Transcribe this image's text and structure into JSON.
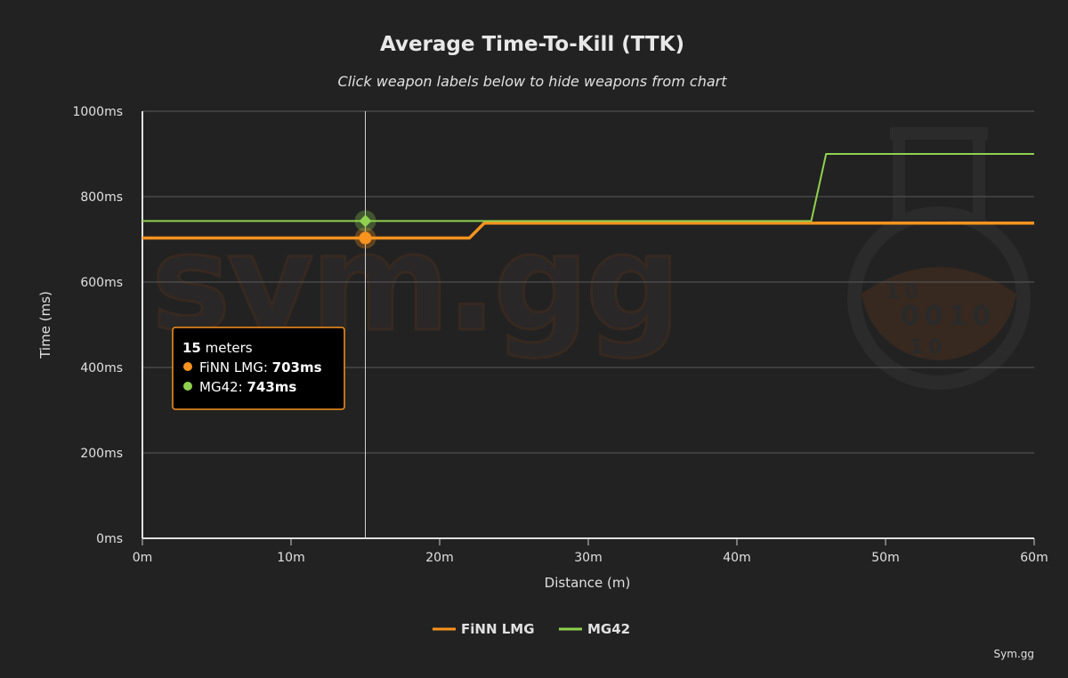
{
  "chart_data": {
    "type": "line",
    "title": "Average Time-To-Kill (TTK)",
    "subtitle": "Click weapon labels below to hide weapons from chart",
    "xlabel": "Distance (m)",
    "ylabel": "Time (ms)",
    "xlim": [
      0,
      60
    ],
    "ylim": [
      0,
      1000
    ],
    "x_ticks": [
      0,
      10,
      20,
      30,
      40,
      50,
      60
    ],
    "x_tick_labels": [
      "0m",
      "10m",
      "20m",
      "30m",
      "40m",
      "50m",
      "60m"
    ],
    "y_ticks": [
      0,
      200,
      400,
      600,
      800,
      1000
    ],
    "y_tick_labels": [
      "0ms",
      "200ms",
      "400ms",
      "600ms",
      "800ms",
      "1000ms"
    ],
    "grid": true,
    "legend_position": "bottom-center",
    "series": [
      {
        "name": "FiNN LMG",
        "color": "#f7931e",
        "x": [
          0,
          22,
          23,
          60
        ],
        "y": [
          703,
          703,
          738,
          738
        ]
      },
      {
        "name": "MG42",
        "color": "#8fd14f",
        "x": [
          0,
          45,
          46,
          60
        ],
        "y": [
          743,
          743,
          900,
          900
        ]
      }
    ],
    "crosshair_x": 15,
    "tooltip": {
      "distance": "15",
      "unit": "meters",
      "rows": [
        {
          "name": "FiNN LMG",
          "value": "703ms",
          "color": "#f7931e"
        },
        {
          "name": "MG42",
          "value": "743ms",
          "color": "#8fd14f"
        }
      ],
      "border_color": "#f7931e"
    }
  },
  "watermark": {
    "text": "sym.gg",
    "binary_rows": [
      "10",
      "0010",
      "10"
    ]
  },
  "credit": "Sym.gg",
  "colors": {
    "background": "#222222",
    "grid": "#5a5a5a"
  }
}
